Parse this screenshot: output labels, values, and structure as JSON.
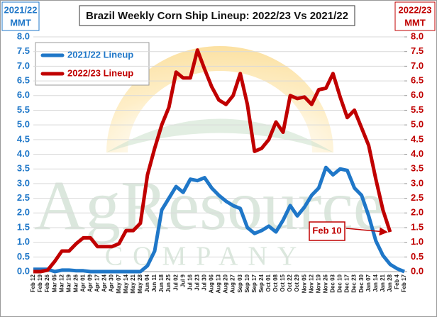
{
  "chart_data": {
    "type": "line",
    "title": "Brazil Weekly Corn Ship Lineup: 2022/23 Vs 2021/22",
    "y_label_lines": [
      "2021/22",
      "MMT"
    ],
    "y2_label_lines": [
      "2022/23",
      "MMT"
    ],
    "watermark": "AgResource",
    "watermark_sub": "COMPANY",
    "annotation": "Feb 10",
    "categories": [
      "Feb 12",
      "Feb 19",
      "Feb 26",
      "Mar 05",
      "Mar 12",
      "Mar 19",
      "Mar 26",
      "Apr 01",
      "Apr 09",
      "Apr 17",
      "Apr 24",
      "Apr 30",
      "May 07",
      "May 14",
      "May 21",
      "May 28",
      "Jun 04",
      "Jun 11",
      "Jun 18",
      "Jun 25",
      "Jul 02",
      "Jul 9",
      "Jul 16",
      "Jul 23",
      "Jul 30",
      "Aug 06",
      "Aug 13",
      "Aug 20",
      "Aug 27",
      "Sep 03",
      "Sep 10",
      "Sep 17",
      "Sep 24",
      "Oct 01",
      "Oct 08",
      "Oct 15",
      "Oct 22",
      "Oct 29",
      "Nov 05",
      "Nov 12",
      "Nov 19",
      "Nov 26",
      "Dec 03",
      "Dec 10",
      "Dec 17",
      "Dec 23",
      "Dec 30",
      "Jan 07",
      "Jan 14",
      "Jan 21",
      "Jan 28",
      "Feb 4",
      "Feb 17"
    ],
    "series": [
      {
        "name": "2021/22 Lineup",
        "color": "#1f77c8",
        "values": [
          0.08,
          0.08,
          0.08,
          0.0,
          0.05,
          0.05,
          0.03,
          0.03,
          0,
          0,
          0,
          0,
          0,
          0,
          0,
          0,
          0.2,
          0.7,
          2.1,
          2.5,
          2.9,
          2.7,
          3.15,
          3.1,
          3.2,
          2.85,
          2.6,
          2.4,
          2.25,
          2.15,
          1.5,
          1.3,
          1.4,
          1.55,
          1.35,
          1.75,
          2.25,
          1.9,
          2.2,
          2.6,
          2.85,
          3.55,
          3.3,
          3.5,
          3.45,
          2.85,
          2.6,
          1.9,
          1.05,
          0.55,
          0.25,
          0.1,
          0
        ]
      },
      {
        "name": "2022/23 Lineup",
        "color": "#c00000",
        "axis": "y2",
        "values": [
          0,
          0,
          0.05,
          0.35,
          0.7,
          0.7,
          0.95,
          1.15,
          1.15,
          0.85,
          0.85,
          0.85,
          0.95,
          1.4,
          1.4,
          1.65,
          3.3,
          4.2,
          5.0,
          5.6,
          6.8,
          6.6,
          6.6,
          7.55,
          6.9,
          6.3,
          5.85,
          5.7,
          6.0,
          6.75,
          5.7,
          4.1,
          4.2,
          4.5,
          5.1,
          4.75,
          6.0,
          5.9,
          5.95,
          5.7,
          6.2,
          6.25,
          6.75,
          5.95,
          5.25,
          5.5,
          4.9,
          4.3,
          3.15,
          2.1,
          1.35,
          null,
          null
        ]
      }
    ],
    "ylim": [
      0,
      8
    ],
    "yticks": [
      {
        "value": 0,
        "label": "0.0"
      },
      {
        "value": 0.5,
        "label": "0.5"
      },
      {
        "value": 1,
        "label": "1.0"
      },
      {
        "value": 1.5,
        "label": "1.5"
      },
      {
        "value": 2,
        "label": "2.0"
      },
      {
        "value": 2.5,
        "label": "2.5"
      },
      {
        "value": 3,
        "label": "3.0"
      },
      {
        "value": 3.5,
        "label": "3.5"
      },
      {
        "value": 4,
        "label": "4.0"
      },
      {
        "value": 4.5,
        "label": "4.5"
      },
      {
        "value": 5,
        "label": "5.0"
      },
      {
        "value": 5.5,
        "label": "5.5"
      },
      {
        "value": 6,
        "label": "6.0"
      },
      {
        "value": 6.5,
        "label": "6.5"
      },
      {
        "value": 7,
        "label": "7.0"
      },
      {
        "value": 7.5,
        "label": "7.5"
      },
      {
        "value": 8,
        "label": "8.0"
      }
    ],
    "y2lim": [
      0,
      8
    ],
    "y2ticks": [
      {
        "value": 0,
        "label": "0.0"
      },
      {
        "value": 0.5,
        "label": "0.5"
      },
      {
        "value": 1,
        "label": "1.0"
      },
      {
        "value": 1.5,
        "label": "1.5"
      },
      {
        "value": 2,
        "label": "2.0"
      },
      {
        "value": 2.5,
        "label": "2.5"
      },
      {
        "value": 3,
        "label": "3.0"
      },
      {
        "value": 3.5,
        "label": "3.5"
      },
      {
        "value": 4,
        "label": "4.0"
      },
      {
        "value": 4.5,
        "label": "4.5"
      },
      {
        "value": 5,
        "label": "5.0"
      },
      {
        "value": 5.5,
        "label": "5.5"
      },
      {
        "value": 6,
        "label": "6.0"
      },
      {
        "value": 6.5,
        "label": "6.5"
      },
      {
        "value": 7,
        "label": "7.0"
      },
      {
        "value": 7.5,
        "label": "7.5"
      },
      {
        "value": 8,
        "label": "8.0"
      }
    ],
    "grid": true
  }
}
